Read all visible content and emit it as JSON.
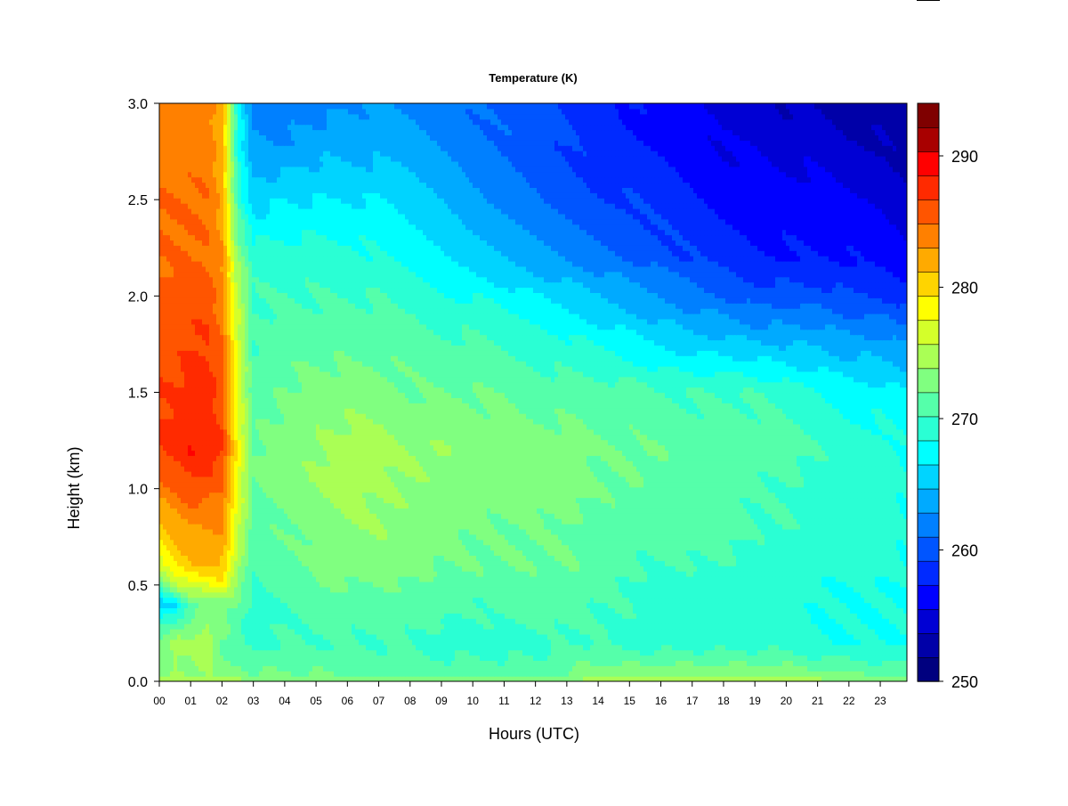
{
  "chart_data": {
    "type": "heatmap",
    "title": "Temperature (K)",
    "xlabel": "Hours (UTC)",
    "ylabel": "Height (km)",
    "xlim": [
      0,
      23.85
    ],
    "ylim": [
      0.0,
      3.0
    ],
    "x_ticks": [
      "00",
      "01",
      "02",
      "03",
      "04",
      "05",
      "06",
      "07",
      "08",
      "09",
      "10",
      "11",
      "12",
      "13",
      "14",
      "15",
      "16",
      "17",
      "18",
      "19",
      "20",
      "21",
      "22",
      "23"
    ],
    "y_ticks": [
      "0.0",
      "0.5",
      "1.0",
      "1.5",
      "2.0",
      "2.5",
      "3.0"
    ],
    "colorbar": {
      "range": [
        250,
        294
      ],
      "step": 2,
      "tick_values": [
        250,
        260,
        270,
        280,
        290
      ],
      "tick_labels": [
        "250",
        "260",
        "270",
        "280",
        "290"
      ],
      "colors": [
        "#00007f",
        "#0000a8",
        "#0000d4",
        "#0000ff",
        "#002aff",
        "#0055ff",
        "#0080ff",
        "#00aaff",
        "#00d4ff",
        "#00ffff",
        "#2affd4",
        "#55ffaa",
        "#80ff80",
        "#aaff55",
        "#d4ff2a",
        "#ffff00",
        "#ffd400",
        "#ffaa00",
        "#ff8000",
        "#ff5500",
        "#ff2a00",
        "#ff0000",
        "#a80000",
        "#7f0000"
      ]
    },
    "hours": [
      0,
      0.5,
      1,
      1.5,
      2,
      2.5,
      3,
      4,
      5,
      6,
      7,
      8,
      9,
      10,
      11,
      12,
      13,
      14,
      15,
      16,
      17,
      18,
      19,
      20,
      21,
      22,
      23,
      23.85
    ],
    "heights": [
      0.0,
      0.05,
      0.2,
      0.4,
      0.5,
      0.6,
      0.8,
      1.0,
      1.2,
      1.5,
      1.8,
      2.0,
      2.2,
      2.5,
      2.8,
      3.0
    ],
    "values": [
      [
        277,
        277,
        277,
        277,
        276,
        277,
        275,
        275,
        275,
        275,
        275,
        275,
        275,
        275,
        275,
        275,
        276,
        277,
        278,
        278,
        278,
        278,
        278,
        277,
        277,
        276,
        275,
        275
      ],
      [
        274,
        276,
        276,
        276,
        275,
        275,
        274,
        274,
        274,
        273,
        273,
        273,
        273,
        273,
        273,
        273,
        274,
        275,
        275,
        275,
        275,
        275,
        275,
        275,
        274,
        274,
        273,
        273
      ],
      [
        275,
        277,
        276,
        278,
        274,
        272,
        271,
        272,
        272,
        272,
        272,
        272,
        271,
        271,
        271,
        271,
        272,
        272,
        271,
        271,
        271,
        271,
        271,
        271,
        270,
        270,
        270,
        270
      ],
      [
        267,
        268,
        273,
        274,
        275,
        274,
        271,
        272,
        273,
        273,
        273,
        273,
        273,
        272,
        273,
        273,
        273,
        272,
        272,
        271,
        271,
        271,
        271,
        271,
        270,
        270,
        270,
        270
      ],
      [
        272,
        277,
        279,
        280,
        281,
        275,
        272,
        273,
        274,
        274,
        274,
        274,
        273,
        273,
        273,
        273,
        273,
        273,
        272,
        271,
        271,
        271,
        271,
        271,
        270,
        270,
        270,
        270
      ],
      [
        279,
        282,
        284,
        284,
        284,
        277,
        272,
        273,
        274,
        275,
        275,
        275,
        274,
        274,
        274,
        274,
        274,
        273,
        272,
        272,
        272,
        272,
        271,
        271,
        271,
        271,
        271,
        270
      ],
      [
        283,
        285,
        286,
        286,
        286,
        279,
        273,
        274,
        275,
        276,
        276,
        275,
        275,
        274,
        274,
        274,
        274,
        273,
        273,
        273,
        273,
        273,
        272,
        272,
        271,
        271,
        271,
        270
      ],
      [
        287,
        288,
        289,
        289,
        288,
        280,
        274,
        275,
        276,
        277,
        276,
        276,
        275,
        275,
        275,
        275,
        275,
        274,
        274,
        273,
        273,
        273,
        272,
        272,
        271,
        271,
        271,
        270
      ],
      [
        290,
        291,
        292,
        292,
        290,
        281,
        274,
        275,
        276,
        277,
        277,
        276,
        276,
        275,
        275,
        275,
        275,
        274,
        274,
        274,
        273,
        273,
        273,
        273,
        272,
        271,
        271,
        270
      ],
      [
        290,
        290,
        291,
        291,
        289,
        280,
        273,
        274,
        275,
        275,
        275,
        274,
        274,
        274,
        274,
        273,
        273,
        273,
        273,
        272,
        272,
        272,
        272,
        271,
        270,
        269,
        269,
        268
      ],
      [
        289,
        289,
        290,
        290,
        288,
        279,
        272,
        273,
        273,
        273,
        273,
        273,
        272,
        272,
        271,
        271,
        270,
        269,
        268,
        267,
        266,
        266,
        265,
        265,
        265,
        264,
        264,
        263
      ],
      [
        288,
        289,
        289,
        289,
        287,
        278,
        272,
        272,
        272,
        272,
        272,
        271,
        270,
        270,
        269,
        268,
        267,
        266,
        265,
        264,
        263,
        262,
        261,
        261,
        261,
        260,
        260,
        259
      ],
      [
        288,
        288,
        288,
        288,
        286,
        276,
        271,
        271,
        271,
        271,
        270,
        269,
        268,
        267,
        266,
        265,
        264,
        263,
        262,
        261,
        260,
        259,
        258,
        258,
        258,
        258,
        257,
        256
      ],
      [
        288,
        288,
        288,
        288,
        285,
        272,
        267,
        268,
        268,
        268,
        268,
        267,
        266,
        264,
        263,
        262,
        261,
        260,
        260,
        259,
        258,
        257,
        257,
        257,
        257,
        256,
        256,
        255
      ],
      [
        287,
        287,
        287,
        287,
        285,
        270,
        264,
        264,
        265,
        265,
        265,
        265,
        264,
        263,
        262,
        261,
        260,
        259,
        258,
        258,
        257,
        256,
        256,
        255,
        255,
        254,
        254,
        253
      ],
      [
        287,
        287,
        287,
        287,
        285,
        270,
        263,
        263,
        263,
        264,
        264,
        264,
        263,
        262,
        261,
        261,
        260,
        259,
        258,
        257,
        256,
        255,
        255,
        254,
        254,
        253,
        253,
        252
      ]
    ]
  }
}
